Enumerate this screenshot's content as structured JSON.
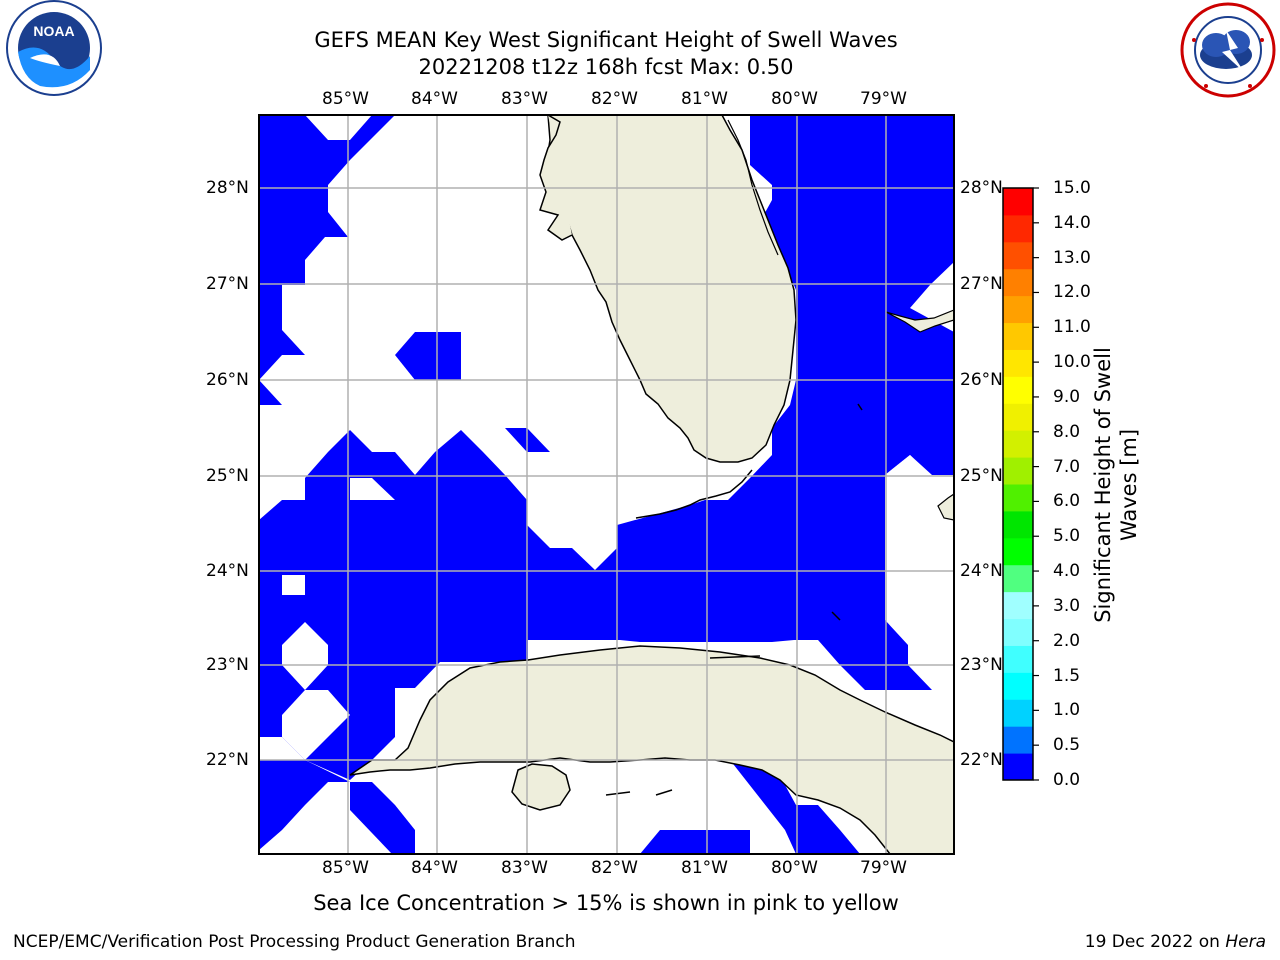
{
  "title_line1": "GEFS MEAN Key West Significant Height of Swell Waves",
  "title_line2": "20221208 t12z 168h fcst   Max: 0.50",
  "lon_labels": [
    "85°W",
    "84°W",
    "83°W",
    "82°W",
    "81°W",
    "80°W",
    "79°W"
  ],
  "lat_labels": [
    "28°N",
    "27°N",
    "26°N",
    "25°N",
    "24°N",
    "23°N",
    "22°N"
  ],
  "colorbar": {
    "label_line1": "Significant Height of Swell",
    "label_line2": "Waves [m]",
    "ticks": [
      "15.0",
      "14.0",
      "13.0",
      "12.0",
      "11.0",
      "10.0",
      "9.0",
      "8.0",
      "7.0",
      "6.0",
      "5.0",
      "4.0",
      "3.0",
      "2.0",
      "1.5",
      "1.0",
      "0.5",
      "0.0"
    ],
    "colors_bottom_to_top": [
      "#0000ff",
      "#0073ff",
      "#00d2ff",
      "#00ffff",
      "#40ffff",
      "#80ffff",
      "#a0ffff",
      "#50ff80",
      "#00ff00",
      "#00e600",
      "#50f000",
      "#a0f000",
      "#d2f000",
      "#f0f000",
      "#ffff00",
      "#ffe600",
      "#ffc800",
      "#ffa000",
      "#ff8000",
      "#ff5000",
      "#ff2800",
      "#ff0000"
    ]
  },
  "map_colors": {
    "swell": "#0000ff",
    "land": "#eeeedc",
    "water": "#ffffff",
    "grid": "#b0b0b0"
  },
  "sea_ice_note": "Sea Ice Concentration > 15% is shown in pink to yellow",
  "footer_left": "NCEP/EMC/Verification Post Processing Product Generation Branch",
  "footer_date": "19 Dec 2022 on ",
  "footer_host": "Hera",
  "logos": {
    "left": "noaa-logo",
    "right": "national-weather-service-logo"
  }
}
